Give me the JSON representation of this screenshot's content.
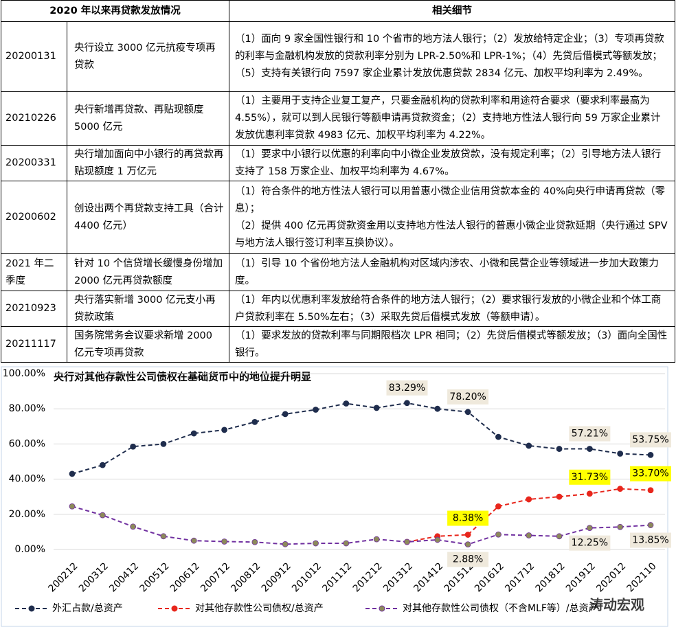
{
  "table": {
    "header": [
      "2020 年以来再贷款发放情况",
      "相关细节"
    ],
    "rows": [
      [
        "20200131",
        "央行设立 3000 亿元抗疫专项再贷款",
        [
          "（1）面向 9 家全国性银行和 10 个省市的地方法人银行；（2）发放给特定企业；（3）专项再贷款的利率与金融机构发放的贷款利率分别为 LPR-2.50%和 LPR-1%；（4）先贷后借模式等额发放；（5）支持有关银行向 7597 家企业累计发放优惠贷款 2834 亿元、加权平均利率为 2.49%。"
        ]
      ],
      [
        "20210226",
        "央行新增再贷款、再贴现额度 5000 亿元",
        [
          "（1）主要用于支持企业复工复产，只要金融机构的贷款利率和用途符合要求（要求利率最高为 4.55%），就可以到人民银行等额申请再贷款资金；（2）支持地方性法人银行向 59 万家企业累计发放优惠利率贷款 4983 亿元、加权平均利率为 4.22%。"
        ]
      ],
      [
        "20200331",
        "央行增加面向中小银行的再贷款再贴现额度 1 万亿元",
        [
          "（1）要求中小银行以优惠的利率向中小微企业发放贷款，没有规定利率；（2）引导地方法人银行支持了 158 万家企业、加权平均利率为 4.67%。"
        ]
      ],
      [
        "20200602",
        "创设出两个再贷款支持工具（合计 4400 亿元）",
        [
          "（1）符合条件的地方性法人银行可以用普惠小微企业信用贷款本金的 40%向央行申请再贷款（零息）；",
          "（2）提供 400 亿元再贷款资金用以支持地方性法人银行的普惠小微企业贷款延期（央行通过 SPV 与地方法人银行签订利率互换协议）。"
        ]
      ],
      [
        "2021 年二季度",
        "针对 10 个信贷增长缓慢身份增加 2000 亿元再贷款额度",
        [
          "（1）引导 10 个省份地方法人金融机构对区域内涉农、小微和民营企业等领域进一步加大政策力度。"
        ]
      ],
      [
        "20210923",
        "央行落实新增 3000 亿元支小再贷款政策",
        [
          "（1）年内以优惠利率发放给符合条件的地方法人银行；（2）要求银行发放的小微企业和个体工商户贷款利率在 5.50%左右；（3）采取先贷后借模式发放（等额申请）。"
        ]
      ],
      [
        "20211117",
        "国务院常务会议要求新增 2000 亿元专项再贷款",
        [
          "（1）要求发放的贷款利率与同期限档次 LPR 相同；（2）先贷后借模式等额发放；（3）面向全国性银行。"
        ]
      ]
    ]
  },
  "chart_data": {
    "type": "line",
    "title": "央行对其他存款性公司债权在基础货币中的地位提升明显",
    "categories": [
      "200212",
      "200312",
      "200412",
      "200512",
      "200612",
      "200712",
      "200812",
      "200912",
      "201012",
      "201112",
      "201212",
      "201312",
      "201412",
      "201512",
      "201612",
      "201712",
      "201812",
      "201912",
      "202012",
      "202110"
    ],
    "series": [
      {
        "name": "外汇占款/总资产",
        "color": "#1f2d4d",
        "values": [
          43,
          48,
          58.5,
          60,
          66,
          68,
          72.5,
          77,
          79.5,
          83,
          80.5,
          83.29,
          80,
          78.2,
          64,
          59,
          57.2,
          57.21,
          54.5,
          53.75
        ],
        "value_labels": [
          null,
          null,
          null,
          null,
          null,
          null,
          null,
          null,
          null,
          null,
          null,
          "83.29%",
          null,
          "78.20%",
          null,
          null,
          null,
          "57.21%",
          null,
          "53.75%"
        ]
      },
      {
        "name": "对其他存款性公司债权/总资产",
        "color": "#e8261c",
        "values": [
          null,
          null,
          null,
          null,
          null,
          null,
          null,
          null,
          null,
          null,
          null,
          4.3,
          7.5,
          8.38,
          24.5,
          28.5,
          30,
          31.73,
          34.5,
          33.7
        ],
        "value_labels": [
          null,
          null,
          null,
          null,
          null,
          null,
          null,
          null,
          null,
          null,
          null,
          null,
          null,
          "8.38%",
          null,
          null,
          null,
          "31.73%",
          null,
          "33.70%"
        ]
      },
      {
        "name": "对其他存款性公司债权（不含MLF等）/总资产",
        "color": "#7030a0",
        "values": [
          24.5,
          19.5,
          13,
          7.5,
          5,
          4.5,
          4.2,
          3,
          3.5,
          3.5,
          5.8,
          4.3,
          5.5,
          2.88,
          8.5,
          8,
          7.5,
          12.25,
          12.8,
          13.85
        ],
        "value_labels": [
          null,
          null,
          null,
          null,
          null,
          null,
          null,
          null,
          null,
          null,
          null,
          null,
          null,
          "2.88%",
          null,
          null,
          null,
          "12.25%",
          null,
          "13.85%"
        ]
      }
    ],
    "ylim": [
      0,
      100
    ],
    "yticks": [
      {
        "value": 0,
        "label": "0.00%"
      },
      {
        "value": 20,
        "label": "20.00%"
      },
      {
        "value": 40,
        "label": "40.00%"
      },
      {
        "value": 60,
        "label": "60.00%"
      },
      {
        "value": 80,
        "label": "80.00%"
      },
      {
        "value": 100,
        "label": "100.00%"
      }
    ],
    "grid": true,
    "watermark": "涛动宏观"
  }
}
